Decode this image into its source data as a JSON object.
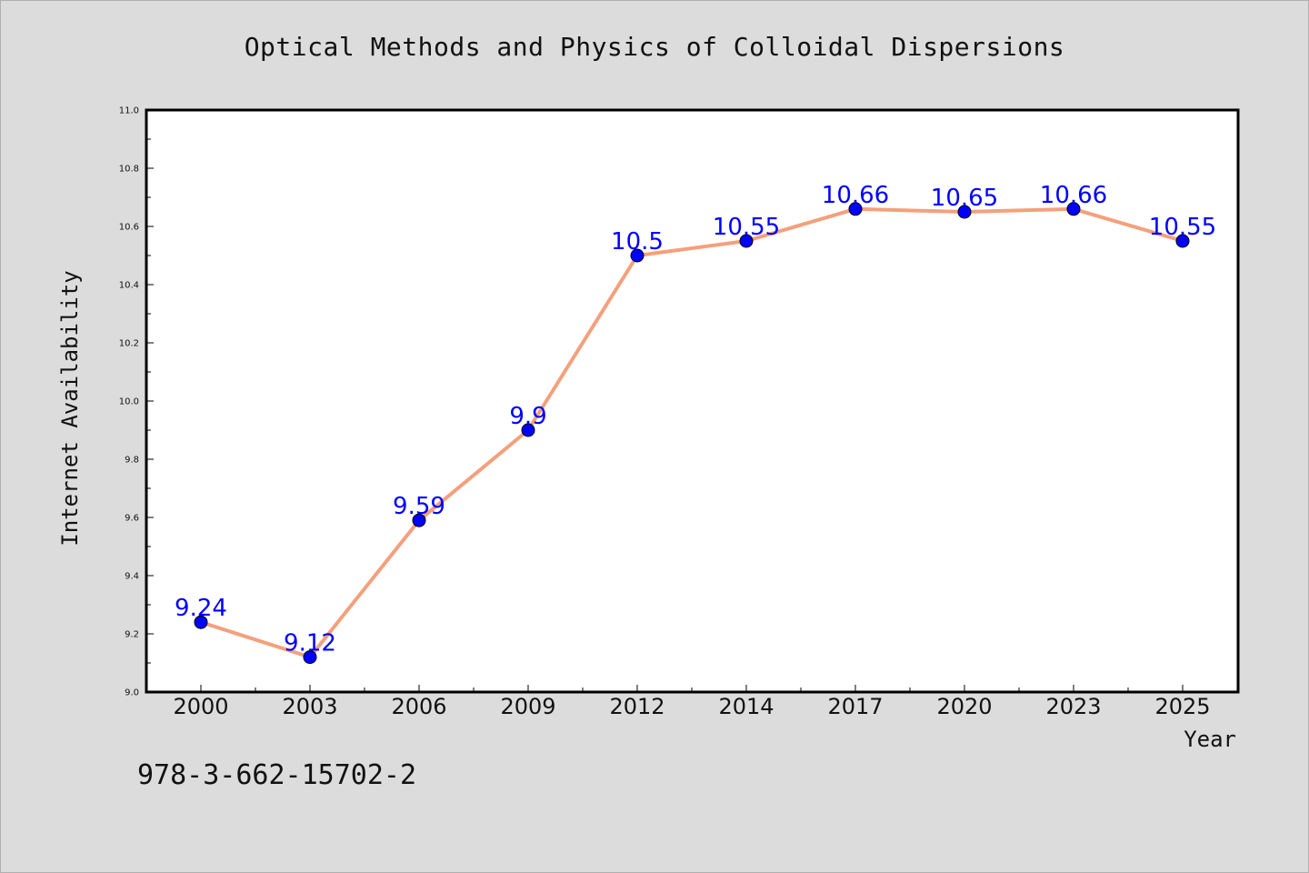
{
  "chart_data": {
    "type": "line",
    "title": "Optical Methods and Physics of Colloidal Dispersions",
    "xlabel": "Year",
    "ylabel": "Internet Availability",
    "categories": [
      "2000",
      "2003",
      "2006",
      "2009",
      "2012",
      "2014",
      "2017",
      "2020",
      "2023",
      "2025"
    ],
    "series": [
      {
        "values": [
          9.24,
          9.12,
          9.59,
          9.9,
          10.5,
          10.55,
          10.66,
          10.65,
          10.66,
          10.55
        ],
        "data_labels": [
          "9.24",
          "9.12",
          "9.59",
          "9.9",
          "10.5",
          "10.55",
          "10.66",
          "10.65",
          "10.66",
          "10.55"
        ]
      }
    ],
    "ylim": [
      9.0,
      11.0
    ],
    "yticks": [
      "9.0",
      "9.2",
      "9.4",
      "9.6",
      "9.8",
      "10.0",
      "10.2",
      "10.4",
      "10.6",
      "10.8",
      "11.0"
    ],
    "grid": false,
    "legend": "none"
  },
  "annotation": "978-3-662-15702-2",
  "colors": {
    "background": "#dcdcdc",
    "plot_background": "#ffffff",
    "line": "#f4a07c",
    "marker": "#0000ff",
    "data_label": "#0000ff"
  }
}
